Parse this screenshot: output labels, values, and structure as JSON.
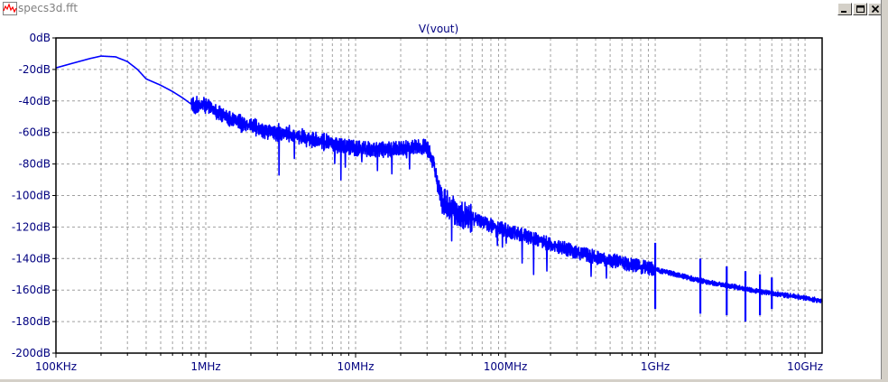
{
  "window": {
    "title": "specs3d.fft",
    "controls": {
      "minimize": "minimize",
      "restore": "restore",
      "close": "close"
    }
  },
  "colors": {
    "trace": "#0000ff",
    "grid": "#a0a0a0",
    "axis_label": "#000080",
    "title_text": "#808080"
  },
  "chart_data": {
    "type": "line",
    "title": "V(vout)",
    "xlabel": "",
    "ylabel": "",
    "xscale": "log",
    "xlim_hz": [
      100000,
      13000000000
    ],
    "ylim": [
      -200,
      0
    ],
    "grid": true,
    "y_ticks": [
      0,
      -20,
      -40,
      -60,
      -80,
      -100,
      -120,
      -140,
      -160,
      -180,
      -200
    ],
    "y_tick_labels": [
      "0dB",
      "-20dB",
      "-40dB",
      "-60dB",
      "-80dB",
      "-100dB",
      "-120dB",
      "-140dB",
      "-160dB",
      "-180dB",
      "-200dB"
    ],
    "x_ticks_hz": [
      100000,
      1000000,
      10000000,
      100000000,
      1000000000,
      10000000000
    ],
    "x_tick_labels": [
      "100KHz",
      "1MHz",
      "10MHz",
      "100MHz",
      "1GHz",
      "10GHz"
    ],
    "series": [
      {
        "name": "V(vout)",
        "x_hz": [
          100000,
          130000,
          170000,
          200000,
          250000,
          300000,
          350000,
          400000,
          500000,
          600000,
          700000,
          800000,
          900000,
          1000000,
          1200000,
          1500000,
          2000000,
          2500000,
          3000000,
          4000000,
          5000000,
          7000000,
          10000000,
          15000000,
          20000000,
          25000000,
          28000000,
          30000000,
          32000000,
          34000000,
          36000000,
          38000000,
          40000000,
          45000000,
          50000000,
          70000000,
          100000000,
          150000000,
          200000000,
          300000000,
          400000000,
          500000000,
          700000000,
          1000000000,
          1500000000,
          2000000000,
          3000000000,
          5000000000,
          7000000000,
          10000000000,
          13000000000
        ],
        "y_db": [
          -19,
          -16,
          -13,
          -11.5,
          -12,
          -15,
          -20,
          -26,
          -30,
          -34,
          -38,
          -42,
          -43,
          -42,
          -47,
          -52,
          -56,
          -59,
          -60,
          -62,
          -64,
          -67,
          -70,
          -71,
          -70,
          -69,
          -69,
          -70,
          -75,
          -84,
          -98,
          -103,
          -105,
          -109,
          -112,
          -117,
          -122,
          -127,
          -131,
          -136,
          -139,
          -141,
          -144,
          -147,
          -151,
          -154,
          -157,
          -161,
          -163,
          -165,
          -167
        ]
      }
    ],
    "spikes_hz": [
      1000000000,
      2000000000,
      3000000000,
      4000000000,
      5000000000,
      6000000000
    ],
    "spike_tops_db": [
      -130,
      -140,
      -145,
      -148,
      -150,
      -152
    ],
    "spike_bottoms_db": [
      -172,
      -175,
      -176,
      -180,
      -176,
      -172
    ]
  }
}
